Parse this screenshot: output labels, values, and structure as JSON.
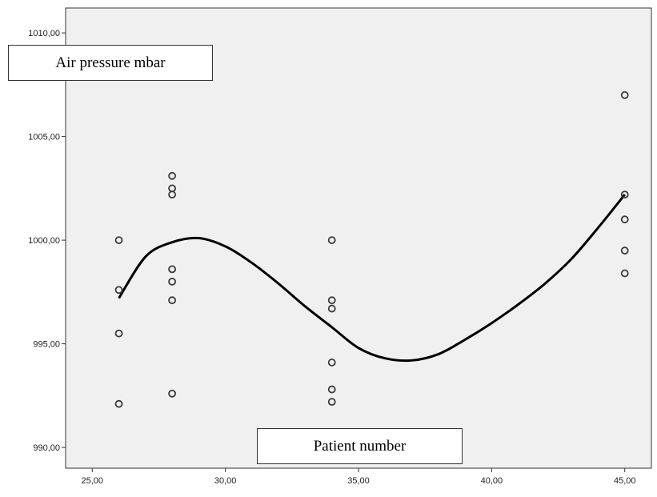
{
  "chart_data": {
    "type": "scatter",
    "xlabel": "Patient number",
    "ylabel": "Air pressure mbar",
    "xlim": [
      24,
      46
    ],
    "ylim": [
      989.0,
      1011.2
    ],
    "x_ticks": [
      "25,00",
      "30,00",
      "35,00",
      "40,00",
      "45,00"
    ],
    "x_tick_values": [
      25,
      30,
      35,
      40,
      45
    ],
    "y_ticks": [
      "990,00",
      "995,00",
      "1000,00",
      "1005,00",
      "1010,00"
    ],
    "y_tick_values": [
      990,
      995,
      1000,
      1005,
      1010
    ],
    "points": [
      {
        "x": 26,
        "y": 1000.0
      },
      {
        "x": 26,
        "y": 997.6
      },
      {
        "x": 26,
        "y": 995.5
      },
      {
        "x": 26,
        "y": 992.1
      },
      {
        "x": 28,
        "y": 1003.1
      },
      {
        "x": 28,
        "y": 1002.5
      },
      {
        "x": 28,
        "y": 1002.2
      },
      {
        "x": 28,
        "y": 998.6
      },
      {
        "x": 28,
        "y": 998.0
      },
      {
        "x": 28,
        "y": 997.1
      },
      {
        "x": 28,
        "y": 992.6
      },
      {
        "x": 34,
        "y": 1000.0
      },
      {
        "x": 34,
        "y": 997.1
      },
      {
        "x": 34,
        "y": 996.7
      },
      {
        "x": 34,
        "y": 994.1
      },
      {
        "x": 34,
        "y": 992.8
      },
      {
        "x": 34,
        "y": 992.2
      },
      {
        "x": 45,
        "y": 1007.0
      },
      {
        "x": 45,
        "y": 1002.2
      },
      {
        "x": 45,
        "y": 1001.0
      },
      {
        "x": 45,
        "y": 999.5
      },
      {
        "x": 45,
        "y": 998.4
      }
    ],
    "fit_line": {
      "x": [
        26,
        27,
        28,
        29,
        30,
        31,
        32,
        33,
        34,
        35,
        36,
        37,
        38,
        39,
        40,
        41,
        42,
        43,
        44,
        45
      ],
      "y": [
        997.2,
        999.2,
        999.9,
        1000.1,
        999.7,
        998.9,
        997.9,
        996.8,
        995.8,
        994.8,
        994.3,
        994.2,
        994.5,
        995.2,
        996.0,
        996.9,
        997.9,
        999.1,
        1000.6,
        1002.2
      ]
    },
    "grid": false,
    "legend": "none",
    "colors": {
      "plot_background": "#f0f0f0",
      "marker": "#3a3a3a",
      "line": "#000000"
    }
  }
}
